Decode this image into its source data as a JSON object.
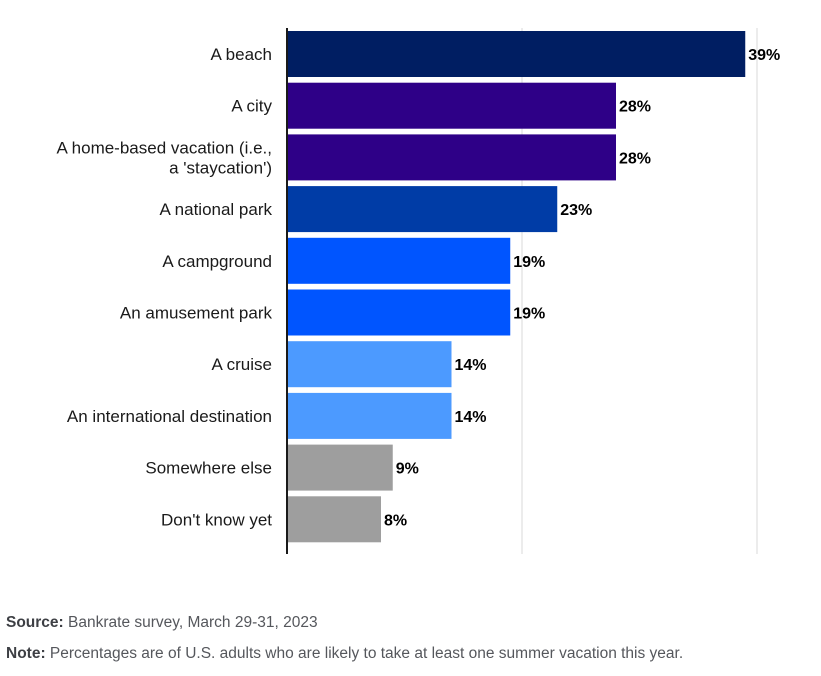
{
  "chart_data": {
    "type": "bar",
    "orientation": "horizontal",
    "categories": [
      [
        "A beach"
      ],
      [
        "A city"
      ],
      [
        "A home-based vacation (i.e.,",
        "a 'staycation')"
      ],
      [
        "A national park"
      ],
      [
        "A campground"
      ],
      [
        "An amusement park"
      ],
      [
        "A cruise"
      ],
      [
        "An international destination"
      ],
      [
        "Somewhere else"
      ],
      [
        "Don't know yet"
      ]
    ],
    "values": [
      39,
      28,
      28,
      23,
      19,
      19,
      14,
      14,
      9,
      8
    ],
    "value_labels": [
      "39%",
      "28%",
      "28%",
      "23%",
      "19%",
      "19%",
      "14%",
      "14%",
      "9%",
      "8%"
    ],
    "colors": [
      "#001e62",
      "#2e0087",
      "#2e0087",
      "#003ca6",
      "#0055ff",
      "#0055ff",
      "#4c9aff",
      "#4c9aff",
      "#9e9e9e",
      "#9e9e9e"
    ],
    "xlim": [
      0,
      40
    ],
    "gridlines": [
      20,
      40
    ],
    "grid": true,
    "legend": "none"
  },
  "footer": {
    "source_label": "Source:",
    "source_text": " Bankrate survey, March 29-31, 2023",
    "note_label": "Note:",
    "note_text": " Percentages are of U.S. adults who are likely to take at least one summer vacation this year."
  }
}
